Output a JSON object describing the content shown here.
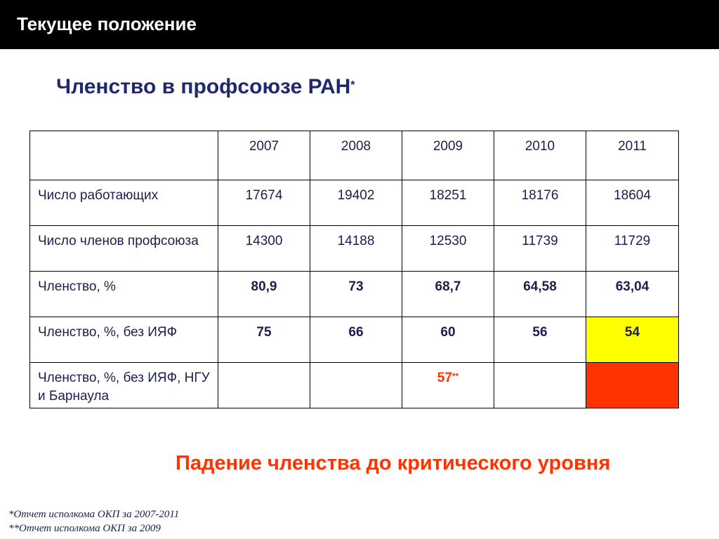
{
  "header": {
    "title": "Текущее положение"
  },
  "subtitle": {
    "text": "Членство в профсоюзе РАН",
    "marker": "*"
  },
  "table": {
    "years": [
      "2007",
      "2008",
      "2009",
      "2010",
      "2011"
    ],
    "rows": [
      {
        "label": "Число работающих",
        "values": [
          "17674",
          "19402",
          "18251",
          "18176",
          "18604"
        ]
      },
      {
        "label": "Число членов профсоюза",
        "values": [
          "14300",
          "14188",
          "12530",
          "11739",
          "11729"
        ]
      },
      {
        "label": "Членство, %",
        "values": [
          "80,9",
          "73",
          "68,7",
          "64,58",
          "63,04"
        ]
      },
      {
        "label": "Членство, %, без ИЯФ",
        "values": [
          "75",
          "66",
          "60",
          "56",
          "54"
        ]
      },
      {
        "label": "Членство, %, без ИЯФ, НГУ и Барнаула",
        "values": [
          "",
          "",
          "57",
          "",
          ""
        ],
        "marker": "**"
      }
    ]
  },
  "conclusion": "Падение членства до критического уровня",
  "footnotes": [
    "*Отчет исполкома ОКП за 2007-2011",
    "**Отчет исполкома ОКП за 2009"
  ],
  "colors": {
    "header_bg": "#000000",
    "title_blue": "#1f2a6e",
    "highlight_yellow": "#ffff00",
    "highlight_red": "#ff3300"
  }
}
